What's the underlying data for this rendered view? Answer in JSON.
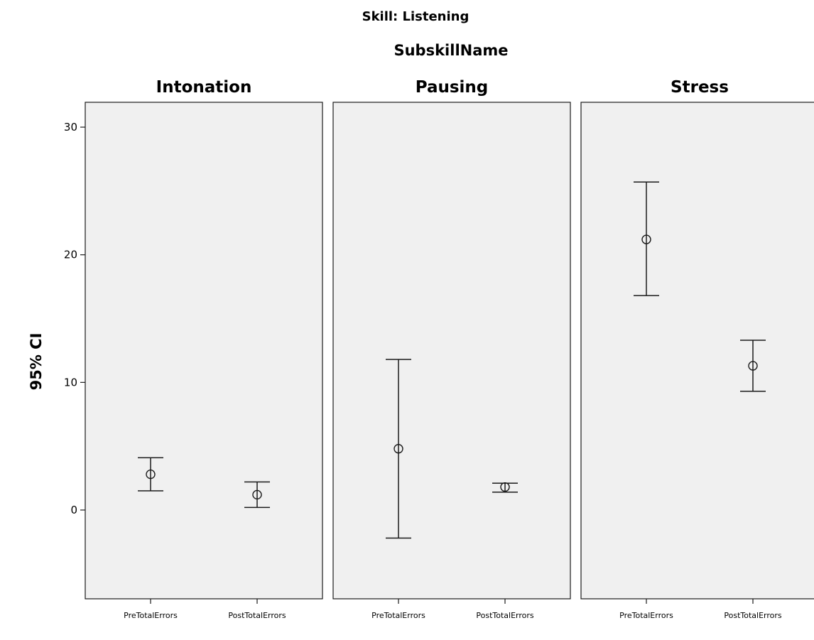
{
  "chart_data": {
    "type": "errorbar",
    "title": "Skill: Listening",
    "subtitle": "SubskillName",
    "ylabel": "95% CI",
    "ylim": [
      -7,
      32
    ],
    "yticks": [
      0,
      10,
      20,
      30
    ],
    "categories": [
      "PreTotalErrors",
      "PostTotalErrors"
    ],
    "grid": false,
    "panels": [
      {
        "name": "Intonation",
        "points": [
          {
            "category": "PreTotalErrors",
            "mean": 2.8,
            "lower": 1.5,
            "upper": 4.1
          },
          {
            "category": "PostTotalErrors",
            "mean": 1.2,
            "lower": 0.2,
            "upper": 2.2
          }
        ]
      },
      {
        "name": "Pausing",
        "points": [
          {
            "category": "PreTotalErrors",
            "mean": 4.8,
            "lower": -2.2,
            "upper": 11.8
          },
          {
            "category": "PostTotalErrors",
            "mean": 1.8,
            "lower": 1.4,
            "upper": 2.1
          }
        ]
      },
      {
        "name": "Stress",
        "points": [
          {
            "category": "PreTotalErrors",
            "mean": 21.2,
            "lower": 16.8,
            "upper": 25.7
          },
          {
            "category": "PostTotalErrors",
            "mean": 11.3,
            "lower": 9.3,
            "upper": 13.3
          }
        ]
      }
    ]
  }
}
